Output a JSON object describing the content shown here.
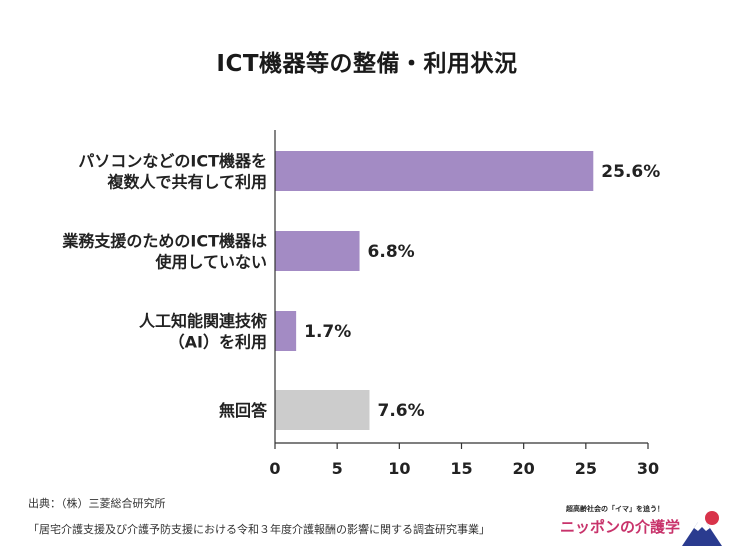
{
  "chart_data": {
    "type": "bar",
    "orientation": "horizontal",
    "title": "ICT機器等の整備・利用状況",
    "categories": [
      [
        "パソコンなどのICT機器を",
        "複数人で共有して利用"
      ],
      [
        "業務支援のためのICT機器は",
        "使用していない"
      ],
      [
        "人工知能関連技術",
        "（AI）を利用"
      ],
      [
        "無回答"
      ]
    ],
    "values": [
      25.6,
      6.8,
      1.7,
      7.6
    ],
    "value_labels": [
      "25.6%",
      "6.8%",
      "1.7%",
      "7.6%"
    ],
    "bar_colors": [
      "#a38bc4",
      "#a38bc4",
      "#a38bc4",
      "#cccccc"
    ],
    "xlim": [
      0,
      30
    ],
    "xticks": [
      0,
      5,
      10,
      15,
      20,
      25,
      30
    ],
    "xlabel": "",
    "ylabel": "",
    "grid": false
  },
  "footer": {
    "source": "出典：（株）三菱総合研究所",
    "study": "「居宅介護支援及び介護予防支援における令和３年度介護報酬の影響に関する調査研究事業」"
  },
  "brand": {
    "tagline": "超高齢社会の「イマ」を追う！",
    "name": "ニッポンの介護学",
    "logo_icon": "mount-fuji-logo-icon"
  }
}
